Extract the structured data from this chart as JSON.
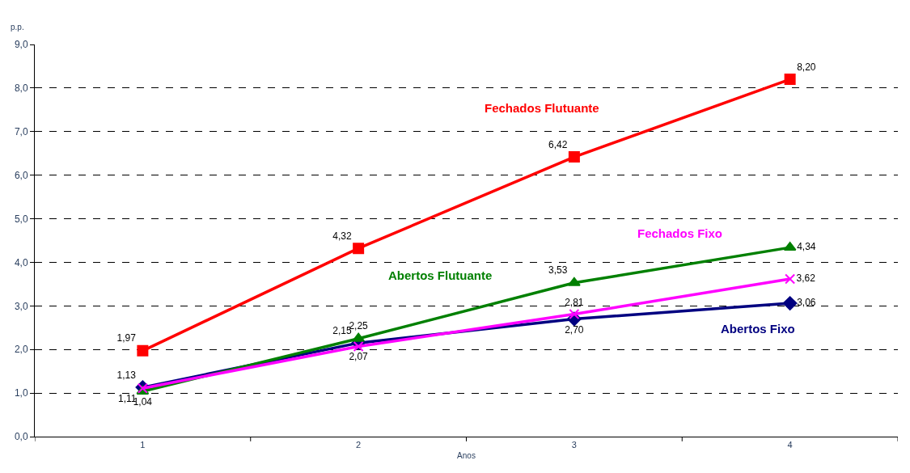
{
  "chart_data": {
    "type": "line",
    "xlabel": "Anos",
    "ylabel": "p.p.",
    "categories": [
      "1",
      "2",
      "3",
      "4"
    ],
    "series": [
      {
        "name": "Abertos Fixo",
        "color": "#000080",
        "marker": "diamond",
        "values": [
          1.13,
          2.15,
          2.7,
          3.06
        ],
        "value_labels": [
          "1,13",
          "2,15",
          "2,70",
          "3,06"
        ]
      },
      {
        "name": "Abertos Flutuante",
        "color": "#008000",
        "marker": "triangle",
        "values": [
          1.04,
          2.25,
          3.53,
          4.34
        ],
        "value_labels": [
          "1,04",
          "2,25",
          "3,53",
          "4,34"
        ]
      },
      {
        "name": "Fechados Fixo",
        "color": "#ff00ff",
        "marker": "cross",
        "values": [
          1.11,
          2.07,
          2.81,
          3.62
        ],
        "value_labels": [
          "1,11",
          "2,07",
          "2,81",
          "3,62"
        ]
      },
      {
        "name": "Fechados Flutuante",
        "color": "#ff0000",
        "marker": "square",
        "values": [
          1.97,
          4.32,
          6.42,
          8.2
        ],
        "value_labels": [
          "1,97",
          "4,32",
          "6,42",
          "8,20"
        ]
      }
    ],
    "ylim": [
      0,
      9
    ],
    "yticks": [
      {
        "value": 0,
        "label": "0,0"
      },
      {
        "value": 1,
        "label": "1,0"
      },
      {
        "value": 2,
        "label": "2,0"
      },
      {
        "value": 3,
        "label": "3,0"
      },
      {
        "value": 4,
        "label": "4,0"
      },
      {
        "value": 5,
        "label": "5,0"
      },
      {
        "value": 6,
        "label": "6,0"
      },
      {
        "value": 7,
        "label": "7,0"
      },
      {
        "value": 8,
        "label": "8,0"
      },
      {
        "value": 9,
        "label": "9,0"
      }
    ],
    "grid": "y",
    "legend": false,
    "line_style": "solid"
  }
}
